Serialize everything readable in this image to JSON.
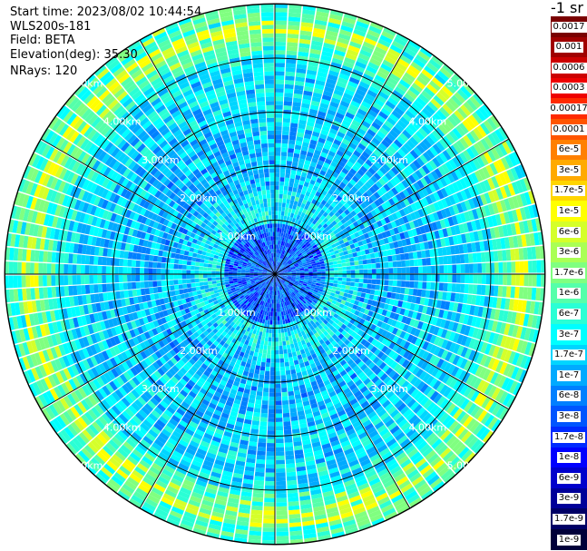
{
  "info": {
    "start_time": "Start time: 2023/08/02 10:44:54",
    "instrument": "WLS200s-181",
    "field": "Field: BETA",
    "elevation": "Elevation(deg): 35.30",
    "nrays": "NRays: 120"
  },
  "range_rings": [
    "1.00km",
    "2.00km",
    "3.00km",
    "4.00km",
    "5.00km"
  ],
  "colorbar": {
    "units": "-1 sr",
    "levels": [
      {
        "label": "0.0017",
        "color": "#7a0000"
      },
      {
        "label": "0.001",
        "color": "#a00000"
      },
      {
        "label": "0.0006",
        "color": "#cc0000"
      },
      {
        "label": "0.0003",
        "color": "#ee0000"
      },
      {
        "label": "0.00017",
        "color": "#ff2a00"
      },
      {
        "label": "0.0001",
        "color": "#ff5500"
      },
      {
        "label": "6e-5",
        "color": "#ff8000"
      },
      {
        "label": "3e-5",
        "color": "#ffaa00"
      },
      {
        "label": "1.7e-5",
        "color": "#ffd500"
      },
      {
        "label": "1e-5",
        "color": "#ffff00"
      },
      {
        "label": "6e-6",
        "color": "#d5ff2a"
      },
      {
        "label": "3e-6",
        "color": "#aaff55"
      },
      {
        "label": "1.7e-6",
        "color": "#80ff80"
      },
      {
        "label": "1e-6",
        "color": "#55ffaa"
      },
      {
        "label": "6e-7",
        "color": "#2affd5"
      },
      {
        "label": "3e-7",
        "color": "#00ffff"
      },
      {
        "label": "1.7e-7",
        "color": "#00d5ff"
      },
      {
        "label": "1e-7",
        "color": "#00aaff"
      },
      {
        "label": "6e-8",
        "color": "#0080ff"
      },
      {
        "label": "3e-8",
        "color": "#0055ff"
      },
      {
        "label": "1.7e-8",
        "color": "#002aff"
      },
      {
        "label": "1e-8",
        "color": "#0000ff"
      },
      {
        "label": "6e-9",
        "color": "#0000cc"
      },
      {
        "label": "3e-9",
        "color": "#000099"
      },
      {
        "label": "1.7e-9",
        "color": "#000066"
      },
      {
        "label": "1e-9",
        "color": "#00003a"
      }
    ]
  }
}
